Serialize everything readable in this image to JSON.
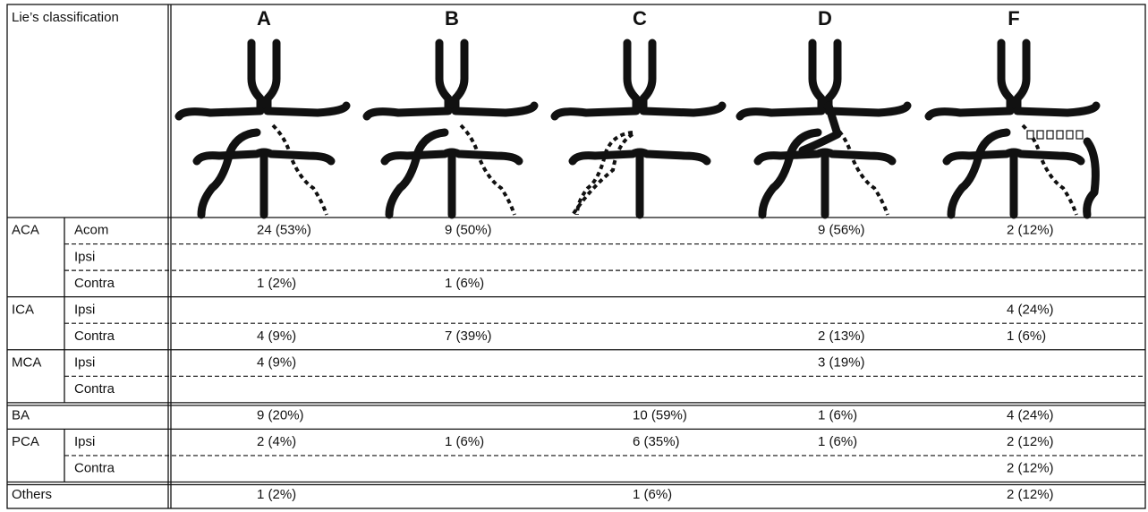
{
  "header": {
    "title": "Lie’s classification",
    "columns": [
      "A",
      "B",
      "C",
      "D",
      "F"
    ]
  },
  "groups": [
    {
      "label": "ACA",
      "rows": [
        {
          "label": "Acom",
          "cells": [
            "24 (53%)",
            "9 (50%)",
            null,
            "9 (56%)",
            "2 (12%)"
          ]
        },
        {
          "label": "Ipsi",
          "cells": [
            null,
            null,
            null,
            null,
            null
          ]
        },
        {
          "label": "Contra",
          "cells": [
            "1 (2%)",
            "1 (6%)",
            null,
            null,
            null
          ]
        }
      ]
    },
    {
      "label": "ICA",
      "rows": [
        {
          "label": "Ipsi",
          "cells": [
            null,
            null,
            null,
            null,
            "4 (24%)"
          ]
        },
        {
          "label": "Contra",
          "cells": [
            "4 (9%)",
            "7 (39%)",
            null,
            "2 (13%)",
            "1 (6%)"
          ]
        }
      ]
    },
    {
      "label": "MCA",
      "rows": [
        {
          "label": "Ipsi",
          "cells": [
            "4 (9%)",
            null,
            null,
            "3 (19%)",
            null
          ]
        },
        {
          "label": "Contra",
          "cells": [
            null,
            null,
            null,
            null,
            null
          ]
        }
      ]
    },
    {
      "label": "BA",
      "rows": [
        {
          "cells": [
            "9 (20%)",
            null,
            "10 (59%)",
            "1 (6%)",
            "4 (24%)"
          ]
        }
      ]
    },
    {
      "label": "PCA",
      "rows": [
        {
          "label": "Ipsi",
          "cells": [
            "2 (4%)",
            "1 (6%)",
            "6 (35%)",
            "1 (6%)",
            "2 (12%)"
          ]
        },
        {
          "label": "Contra",
          "cells": [
            null,
            null,
            null,
            null,
            "2 (12%)"
          ]
        }
      ]
    },
    {
      "label": "Others",
      "rows": [
        {
          "cells": [
            "1 (2%)",
            null,
            "1 (6%)",
            null,
            "2 (12%)"
          ]
        }
      ]
    }
  ]
}
